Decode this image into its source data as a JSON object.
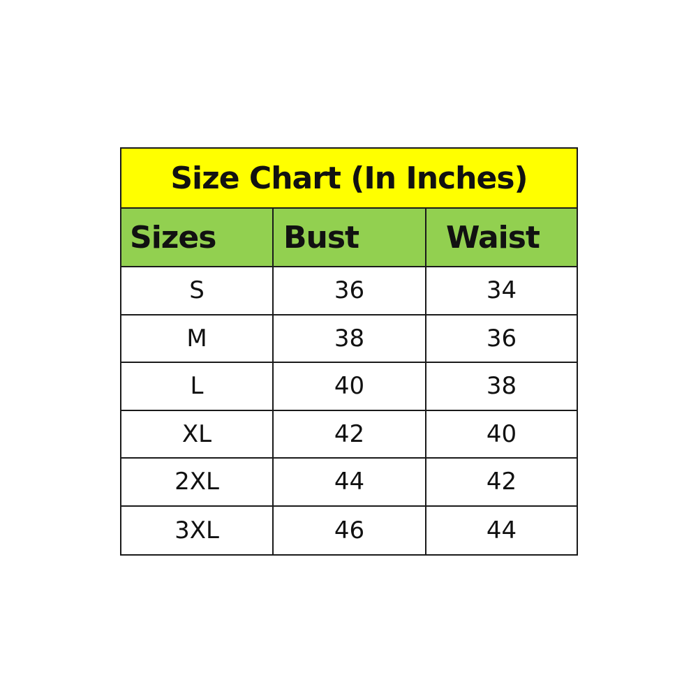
{
  "title": "Size Chart (In Inches)",
  "headers": [
    "Sizes",
    "Bust",
    "Waist"
  ],
  "rows": [
    [
      "S",
      "36",
      "34"
    ],
    [
      "M",
      "38",
      "36"
    ],
    [
      "L",
      "40",
      "38"
    ],
    [
      "XL",
      "42",
      "40"
    ],
    [
      "2XL",
      "44",
      "42"
    ],
    [
      "3XL",
      "46",
      "44"
    ]
  ],
  "colors": {
    "title_bg": "#ffff00",
    "header_bg": "#92d050",
    "border": "#1a1a1a"
  }
}
